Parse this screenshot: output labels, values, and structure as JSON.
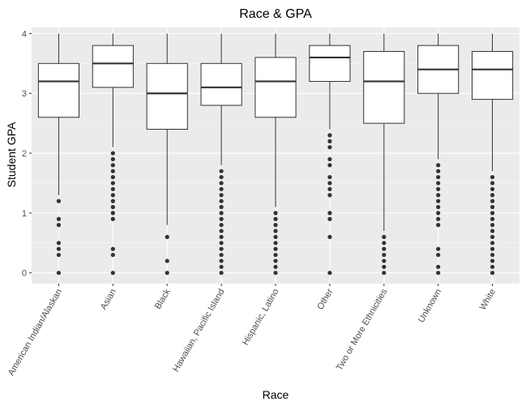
{
  "chart_data": {
    "type": "boxplot",
    "title": "Race & GPA",
    "xlabel": "Race",
    "ylabel": "Student GPA",
    "ylim": [
      -0.18,
      4.1
    ],
    "yticks": [
      0,
      1,
      2,
      3,
      4
    ],
    "grid": true,
    "legend": "none",
    "colors": {
      "panel": "#ebebeb",
      "grid_major": "#ffffff",
      "box_fill": "#ffffff",
      "box_stroke": "#333333",
      "outlier": "#333333"
    },
    "categories": [
      "American Indian/Alaskan",
      "Asian",
      "Black",
      "Hawaiian, Pacific Island",
      "Hispanic, Latino",
      "Other",
      "Two or More Ethnicities",
      "Unknown",
      "White"
    ],
    "boxes": [
      {
        "q1": 2.6,
        "median": 3.2,
        "q3": 3.5,
        "whisker_low": 1.3,
        "whisker_high": 4.0,
        "outliers": [
          1.2,
          0.9,
          0.8,
          0.5,
          0.4,
          0.3,
          0.0
        ]
      },
      {
        "q1": 3.1,
        "median": 3.5,
        "q3": 3.8,
        "whisker_low": 2.1,
        "whisker_high": 4.0,
        "outliers": [
          2.0,
          1.9,
          1.8,
          1.7,
          1.6,
          1.5,
          1.4,
          1.3,
          1.2,
          1.1,
          1.0,
          0.9,
          0.4,
          0.3,
          0.0
        ]
      },
      {
        "q1": 2.4,
        "median": 3.0,
        "q3": 3.5,
        "whisker_low": 0.8,
        "whisker_high": 4.0,
        "outliers": [
          0.6,
          0.2,
          0.0
        ]
      },
      {
        "q1": 2.8,
        "median": 3.1,
        "q3": 3.5,
        "whisker_low": 1.8,
        "whisker_high": 4.0,
        "outliers": [
          1.7,
          1.6,
          1.5,
          1.4,
          1.3,
          1.2,
          1.1,
          1.0,
          0.9,
          0.8,
          0.7,
          0.6,
          0.5,
          0.4,
          0.3,
          0.2,
          0.1,
          0.0
        ]
      },
      {
        "q1": 2.6,
        "median": 3.2,
        "q3": 3.6,
        "whisker_low": 1.1,
        "whisker_high": 4.0,
        "outliers": [
          1.0,
          0.9,
          0.8,
          0.7,
          0.6,
          0.5,
          0.4,
          0.3,
          0.2,
          0.1,
          0.0
        ]
      },
      {
        "q1": 3.2,
        "median": 3.6,
        "q3": 3.8,
        "whisker_low": 2.4,
        "whisker_high": 4.0,
        "outliers": [
          2.3,
          2.2,
          2.1,
          1.9,
          1.8,
          1.6,
          1.5,
          1.4,
          1.3,
          1.0,
          0.9,
          0.6,
          0.0
        ]
      },
      {
        "q1": 2.5,
        "median": 3.2,
        "q3": 3.7,
        "whisker_low": 0.7,
        "whisker_high": 4.0,
        "outliers": [
          0.6,
          0.5,
          0.4,
          0.3,
          0.2,
          0.1,
          0.0
        ]
      },
      {
        "q1": 3.0,
        "median": 3.4,
        "q3": 3.8,
        "whisker_low": 1.9,
        "whisker_high": 4.0,
        "outliers": [
          1.8,
          1.7,
          1.6,
          1.5,
          1.4,
          1.3,
          1.2,
          1.1,
          1.0,
          0.9,
          0.8,
          0.4,
          0.3,
          0.1,
          0.0
        ]
      },
      {
        "q1": 2.9,
        "median": 3.4,
        "q3": 3.7,
        "whisker_low": 1.7,
        "whisker_high": 4.0,
        "outliers": [
          1.6,
          1.5,
          1.4,
          1.3,
          1.2,
          1.1,
          1.0,
          0.9,
          0.8,
          0.7,
          0.6,
          0.5,
          0.4,
          0.3,
          0.2,
          0.1,
          0.0
        ]
      }
    ]
  }
}
